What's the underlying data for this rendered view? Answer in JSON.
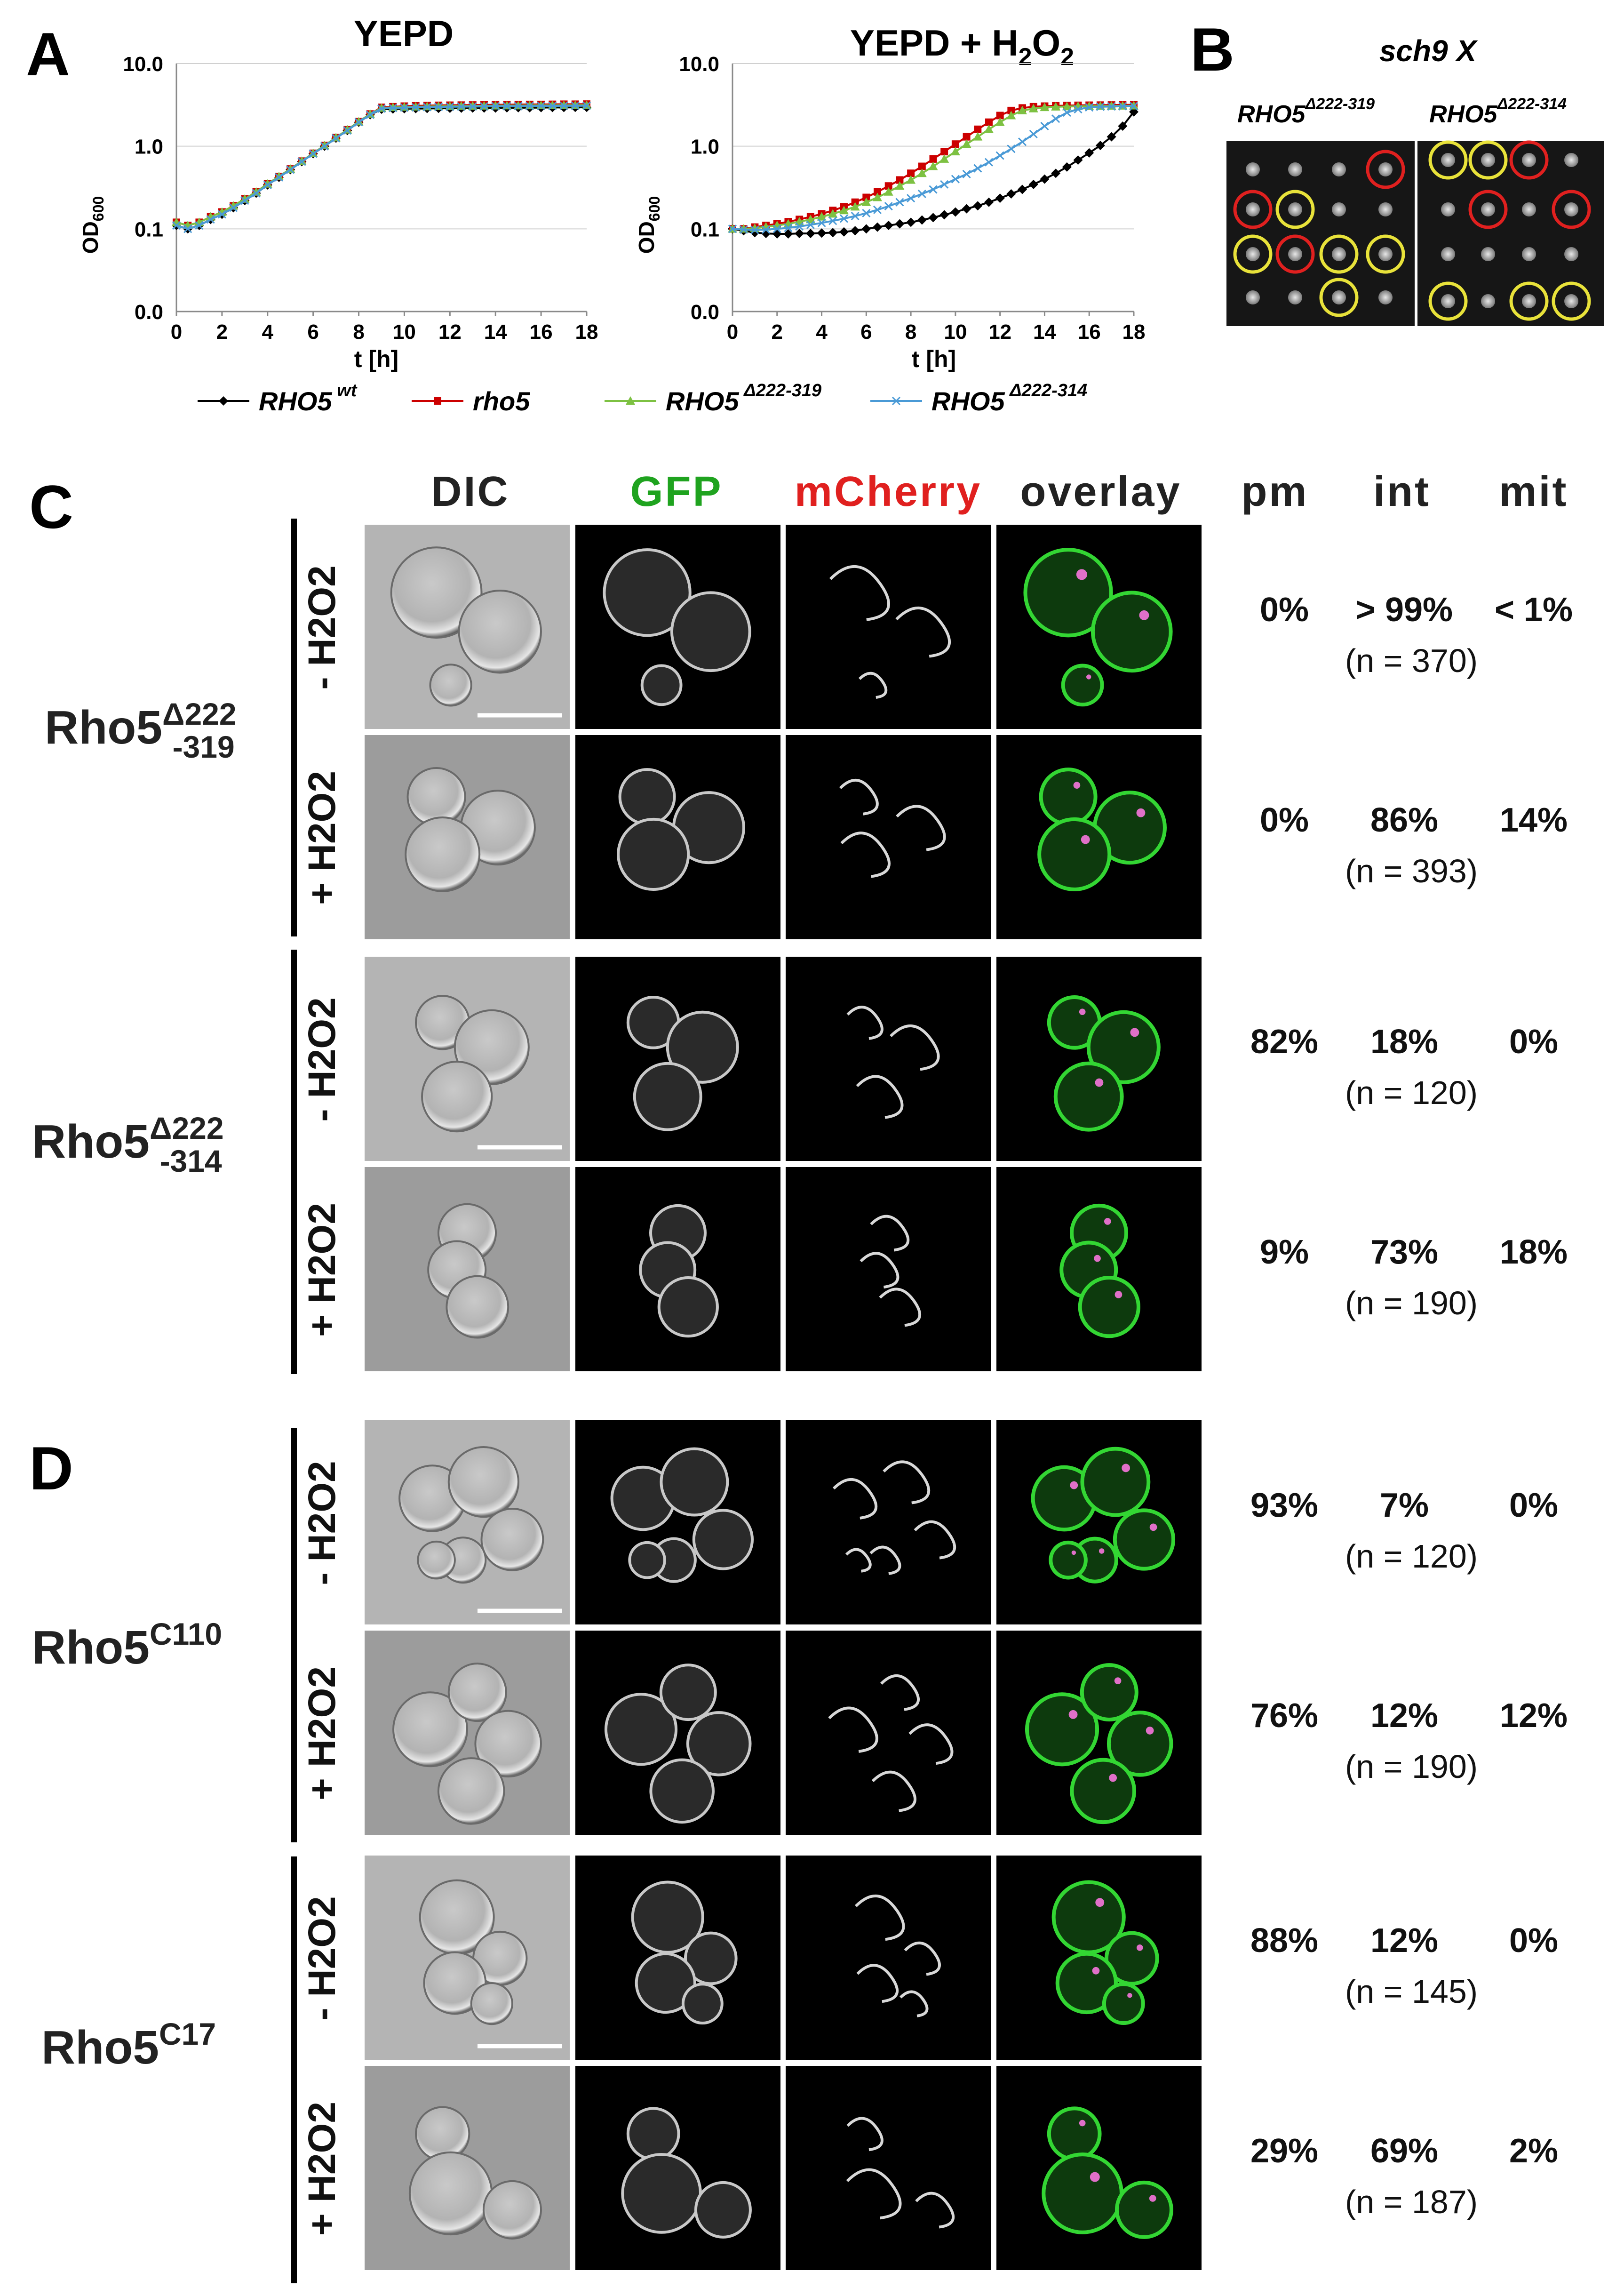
{
  "panels": {
    "A": "A",
    "B": "B",
    "C": "C",
    "D": "D"
  },
  "panel_a": {
    "legend": [
      {
        "name": "RHO5",
        "sup": "wt",
        "color": "#000000",
        "marker": "diamond"
      },
      {
        "name": "rho5",
        "sup": "",
        "color": "#cc0000",
        "marker": "square"
      },
      {
        "name": "RHO5",
        "sup": "Δ222-319",
        "color": "#7dc142",
        "marker": "triangle"
      },
      {
        "name": "RHO5",
        "sup": "Δ222-314",
        "color": "#4a9ad6",
        "marker": "x"
      }
    ]
  },
  "chart_data": [
    {
      "type": "line",
      "title": "YEPD",
      "xlabel": "t [h]",
      "ylabel": "OD600",
      "y_tick_labels": [
        "0.0",
        "0.1",
        "1.0",
        "10.0"
      ],
      "x_ticks": [
        0,
        2,
        4,
        6,
        8,
        10,
        12,
        14,
        16,
        18
      ],
      "xlim": [
        0,
        18
      ],
      "x": [
        0,
        0.5,
        1,
        1.5,
        2,
        2.5,
        3,
        3.5,
        4,
        4.5,
        5,
        5.5,
        6,
        6.5,
        7,
        7.5,
        8,
        8.5,
        9,
        9.5,
        10,
        10.5,
        11,
        11.5,
        12,
        12.5,
        13,
        13.5,
        14,
        14.5,
        15,
        15.5,
        16,
        16.5,
        17,
        17.5,
        18
      ],
      "series": [
        {
          "name": "RHO5 wt",
          "values": [
            0.11,
            0.1,
            0.11,
            0.13,
            0.15,
            0.18,
            0.22,
            0.27,
            0.34,
            0.42,
            0.52,
            0.65,
            0.81,
            1.0,
            1.25,
            1.55,
            1.95,
            2.4,
            2.8,
            2.82,
            2.84,
            2.85,
            2.86,
            2.87,
            2.88,
            2.89,
            2.9,
            2.9,
            2.9,
            2.91,
            2.92,
            2.92,
            2.93,
            2.94,
            2.94,
            2.95,
            2.95
          ]
        },
        {
          "name": "rho5",
          "values": [
            0.12,
            0.11,
            0.12,
            0.14,
            0.16,
            0.19,
            0.23,
            0.28,
            0.35,
            0.43,
            0.53,
            0.66,
            0.82,
            1.02,
            1.27,
            1.58,
            1.98,
            2.45,
            2.95,
            3.0,
            3.05,
            3.08,
            3.1,
            3.12,
            3.13,
            3.14,
            3.15,
            3.16,
            3.17,
            3.18,
            3.19,
            3.2,
            3.2,
            3.21,
            3.22,
            3.22,
            3.23
          ]
        },
        {
          "name": "RHO5 Δ222-319",
          "values": [
            0.12,
            0.11,
            0.12,
            0.14,
            0.16,
            0.19,
            0.23,
            0.28,
            0.35,
            0.43,
            0.53,
            0.66,
            0.82,
            1.02,
            1.27,
            1.58,
            1.98,
            2.45,
            2.9,
            2.95,
            2.98,
            3.0,
            3.02,
            3.04,
            3.05,
            3.06,
            3.07,
            3.08,
            3.09,
            3.1,
            3.1,
            3.11,
            3.12,
            3.12,
            3.13,
            3.13,
            3.14
          ]
        },
        {
          "name": "RHO5 Δ222-314",
          "values": [
            0.11,
            0.1,
            0.11,
            0.13,
            0.15,
            0.18,
            0.22,
            0.27,
            0.34,
            0.42,
            0.52,
            0.65,
            0.81,
            1.0,
            1.25,
            1.55,
            1.95,
            2.4,
            2.85,
            2.9,
            2.93,
            2.95,
            2.97,
            2.99,
            3.0,
            3.01,
            3.02,
            3.03,
            3.04,
            3.05,
            3.05,
            3.06,
            3.07,
            3.07,
            3.08,
            3.08,
            3.09
          ]
        }
      ]
    },
    {
      "type": "line",
      "title": "YEPD + H2O2",
      "xlabel": "t [h]",
      "ylabel": "OD600",
      "y_tick_labels": [
        "0.0",
        "0.1",
        "1.0",
        "10.0"
      ],
      "x_ticks": [
        0,
        2,
        4,
        6,
        8,
        10,
        12,
        14,
        16,
        18
      ],
      "xlim": [
        0,
        18
      ],
      "x": [
        0,
        0.5,
        1,
        1.5,
        2,
        2.5,
        3,
        3.5,
        4,
        4.5,
        5,
        5.5,
        6,
        6.5,
        7,
        7.5,
        8,
        8.5,
        9,
        9.5,
        10,
        10.5,
        11,
        11.5,
        12,
        12.5,
        13,
        13.5,
        14,
        14.5,
        15,
        15.5,
        16,
        16.5,
        17,
        17.5,
        18
      ],
      "series": [
        {
          "name": "RHO5 wt",
          "values": [
            0.1,
            0.095,
            0.09,
            0.088,
            0.087,
            0.087,
            0.088,
            0.088,
            0.089,
            0.09,
            0.092,
            0.095,
            0.1,
            0.105,
            0.11,
            0.115,
            0.12,
            0.128,
            0.137,
            0.148,
            0.16,
            0.175,
            0.19,
            0.21,
            0.235,
            0.265,
            0.3,
            0.345,
            0.4,
            0.47,
            0.56,
            0.68,
            0.83,
            1.02,
            1.3,
            1.75,
            2.6
          ]
        },
        {
          "name": "rho5",
          "values": [
            0.1,
            0.1,
            0.105,
            0.11,
            0.115,
            0.122,
            0.13,
            0.14,
            0.152,
            0.167,
            0.185,
            0.21,
            0.24,
            0.28,
            0.33,
            0.39,
            0.47,
            0.57,
            0.7,
            0.86,
            1.06,
            1.3,
            1.6,
            1.95,
            2.35,
            2.7,
            2.9,
            3.0,
            3.05,
            3.08,
            3.1,
            3.12,
            3.13,
            3.14,
            3.15,
            3.16,
            3.17
          ]
        },
        {
          "name": "RHO5 Δ222-319",
          "values": [
            0.1,
            0.1,
            0.102,
            0.106,
            0.11,
            0.115,
            0.122,
            0.13,
            0.14,
            0.152,
            0.167,
            0.185,
            0.21,
            0.24,
            0.28,
            0.33,
            0.39,
            0.47,
            0.57,
            0.7,
            0.86,
            1.06,
            1.3,
            1.6,
            1.95,
            2.35,
            2.7,
            2.85,
            2.95,
            3.0,
            3.02,
            3.04,
            3.05,
            3.06,
            3.07,
            3.08,
            3.09
          ]
        },
        {
          "name": "RHO5 Δ222-314",
          "values": [
            0.1,
            0.098,
            0.097,
            0.098,
            0.1,
            0.103,
            0.107,
            0.112,
            0.118,
            0.125,
            0.133,
            0.143,
            0.155,
            0.17,
            0.188,
            0.21,
            0.235,
            0.265,
            0.3,
            0.345,
            0.4,
            0.46,
            0.54,
            0.64,
            0.77,
            0.93,
            1.13,
            1.4,
            1.75,
            2.15,
            2.55,
            2.8,
            2.95,
            3.0,
            3.02,
            3.04,
            3.05
          ]
        }
      ]
    }
  ],
  "panel_b": {
    "title": "sch9 X",
    "left_label": "RHO5",
    "left_sup": "Δ222-319",
    "right_label": "RHO5",
    "right_sup": "Δ222-314"
  },
  "columns": {
    "dic": "DIC",
    "gfp": "GFP",
    "mcherry": "mCherry",
    "overlay": "overlay",
    "pm": "pm",
    "int": "int",
    "mit": "mit"
  },
  "constructs": [
    {
      "base": "Rho5",
      "sup": "Δ222",
      "sub": "-319"
    },
    {
      "base": "Rho5",
      "sup": "Δ222",
      "sub": "-314"
    },
    {
      "base": "Rho5",
      "sup": "C110",
      "sub": ""
    },
    {
      "base": "Rho5",
      "sup": "C17",
      "sub": ""
    }
  ],
  "conditions": {
    "minus": "- H",
    "minus_sub": "2",
    "minus_tail": "O",
    "minus_sub2": "2",
    "plus": "+ H",
    "plus_sub": "2",
    "plus_tail": "O",
    "plus_sub2": "2"
  },
  "rows": [
    {
      "pm": "0%",
      "int": "> 99%",
      "mit": "< 1%",
      "n": "(n = 370)"
    },
    {
      "pm": "0%",
      "int": "86%",
      "mit": "14%",
      "n": "(n = 393)"
    },
    {
      "pm": "82%",
      "int": "18%",
      "mit": "0%",
      "n": "(n = 120)"
    },
    {
      "pm": "9%",
      "int": "73%",
      "mit": "18%",
      "n": "(n = 190)"
    },
    {
      "pm": "93%",
      "int": "7%",
      "mit": "0%",
      "n": "(n = 120)"
    },
    {
      "pm": "76%",
      "int": "12%",
      "mit": "12%",
      "n": "(n = 190)"
    },
    {
      "pm": "88%",
      "int": "12%",
      "mit": "0%",
      "n": "(n = 145)"
    },
    {
      "pm": "29%",
      "int": "69%",
      "mit": "2%",
      "n": "(n = 187)"
    }
  ],
  "colors": {
    "black": "#000000",
    "red": "#cc0000",
    "green_series": "#7dc142",
    "blue_series": "#4a9ad6",
    "gfp_text": "#1fa31f",
    "mcherry_text": "#e0201f",
    "ring_yellow": "#e8e23a",
    "ring_red": "#e0201f"
  }
}
